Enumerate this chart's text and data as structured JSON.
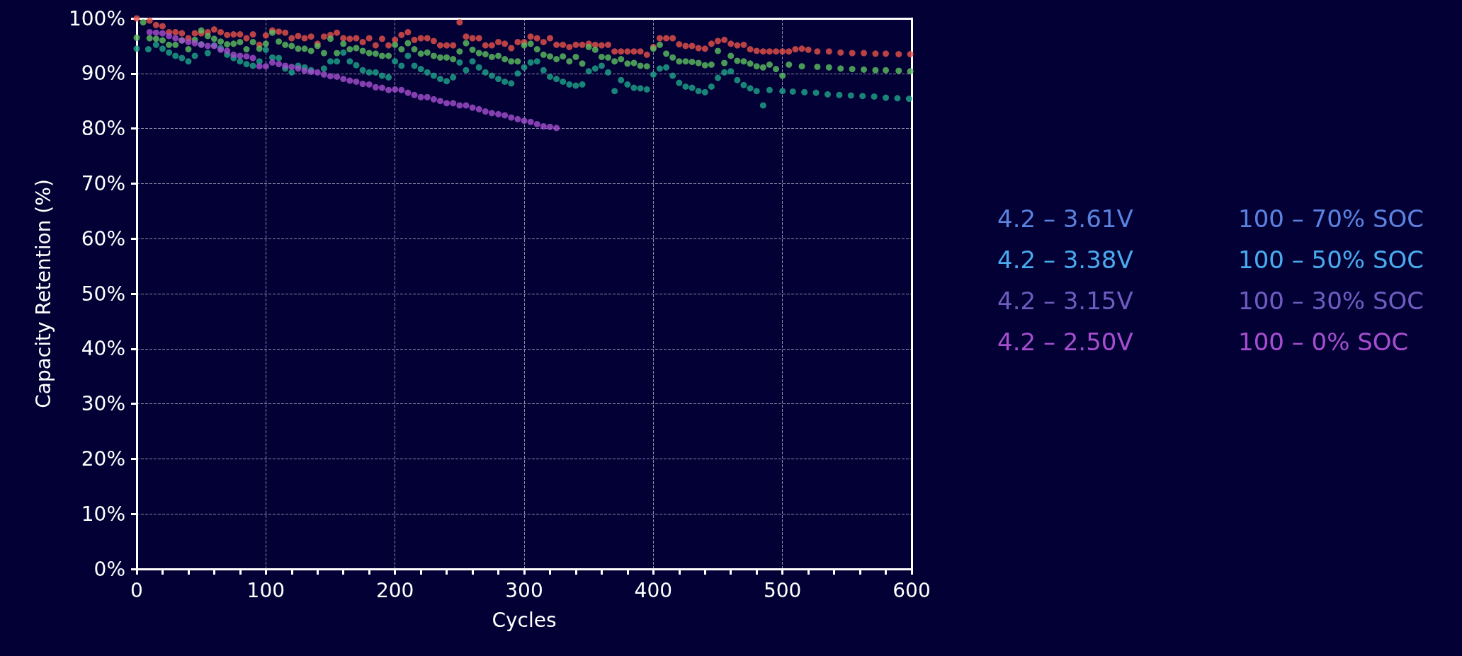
{
  "chart_data": {
    "type": "scatter",
    "xlabel": "Cycles",
    "ylabel": "Capacity Retention (%)",
    "xlim": [
      0,
      600
    ],
    "xticks": [
      0,
      100,
      200,
      300,
      400,
      500,
      600
    ],
    "ylim": [
      0,
      100
    ],
    "yticks": [
      {
        "value": 0,
        "label": "0%"
      },
      {
        "value": 10,
        "label": "10%"
      },
      {
        "value": 20,
        "label": "20%"
      },
      {
        "value": 30,
        "label": "30%"
      },
      {
        "value": 40,
        "label": "40%"
      },
      {
        "value": 50,
        "label": "50%"
      },
      {
        "value": 60,
        "label": "60%"
      },
      {
        "value": 70,
        "label": "70%"
      },
      {
        "value": 80,
        "label": "80%"
      },
      {
        "value": 90,
        "label": "90%"
      },
      {
        "value": 100,
        "label": "100%"
      }
    ],
    "grid": true,
    "marker": "circle",
    "annotations": [
      "4.2 – 3.61V",
      "4.2 – 3.38V",
      "4.2 – 3.15V",
      "4.2 – 2.50V",
      "100 – 70% SOC",
      "100 – 50% SOC",
      "100 – 30% SOC",
      "100 – 0% SOC"
    ],
    "series": [
      {
        "color": "#e8534a",
        "x": [
          0,
          10,
          15,
          20,
          25,
          30,
          35,
          40,
          45,
          50,
          55,
          60,
          65,
          70,
          75,
          80,
          85,
          90,
          95,
          100,
          105,
          110,
          115,
          120,
          125,
          130,
          135,
          140,
          145,
          150,
          155,
          160,
          165,
          170,
          175,
          180,
          185,
          190,
          195,
          200,
          205,
          210,
          215,
          220,
          225,
          230,
          235,
          240,
          245,
          250,
          255,
          260,
          265,
          270,
          275,
          280,
          285,
          290,
          295,
          300,
          305,
          310,
          315,
          320,
          325,
          330,
          335,
          340,
          345,
          350,
          355,
          360,
          365,
          370,
          375,
          380,
          385,
          390,
          395,
          400,
          405,
          410,
          415,
          420,
          425,
          430,
          435,
          440,
          445,
          450,
          455,
          460,
          465,
          470,
          475,
          480,
          485,
          490,
          495,
          500,
          505,
          510,
          515,
          520,
          527,
          536,
          545,
          554,
          563,
          572,
          580,
          590,
          599
        ],
        "values": [
          100,
          99.6,
          98.8,
          98.6,
          97.5,
          97.5,
          97.3,
          96.4,
          97.3,
          97.3,
          97.5,
          98.0,
          97.5,
          97.0,
          97.1,
          97.1,
          96.4,
          97.1,
          95.2,
          96.9,
          97.8,
          97.6,
          97.4,
          96.4,
          96.8,
          96.4,
          96.7,
          95.4,
          96.7,
          97.0,
          97.4,
          96.4,
          96.3,
          96.4,
          95.7,
          96.4,
          95.1,
          96.3,
          95.1,
          96.1,
          97.0,
          97.5,
          96.1,
          96.4,
          96.4,
          95.9,
          95.1,
          95.1,
          95.1,
          99.3,
          96.7,
          96.4,
          96.4,
          95.1,
          95.1,
          95.7,
          95.4,
          94.6,
          95.7,
          95.7,
          96.7,
          96.4,
          95.7,
          96.4,
          95.2,
          95.2,
          94.8,
          95.2,
          95.2,
          95.4,
          95.2,
          95.1,
          95.2,
          94.0,
          94.0,
          94.0,
          94.0,
          94.0,
          93.4,
          94.8,
          96.4,
          96.4,
          96.4,
          95.3,
          95.0,
          95.0,
          94.6,
          94.5,
          95.4,
          95.9,
          96.1,
          95.4,
          95.1,
          95.2,
          94.4,
          94.1,
          94.0,
          94.0,
          94.0,
          94.0,
          94.0,
          94.4,
          94.5,
          94.3,
          94.0,
          94.0,
          93.8,
          93.7,
          93.7,
          93.6,
          93.6,
          93.5,
          93.5
        ]
      },
      {
        "color": "#5cbf60",
        "x": [
          0,
          5,
          10,
          15,
          20,
          25,
          30,
          35,
          40,
          45,
          50,
          55,
          60,
          65,
          70,
          75,
          80,
          85,
          90,
          95,
          100,
          105,
          110,
          115,
          120,
          125,
          130,
          135,
          140,
          145,
          150,
          155,
          160,
          165,
          170,
          175,
          180,
          185,
          190,
          195,
          200,
          205,
          210,
          215,
          220,
          225,
          230,
          235,
          240,
          245,
          250,
          255,
          260,
          265,
          270,
          275,
          280,
          285,
          290,
          295,
          300,
          305,
          310,
          315,
          320,
          325,
          330,
          335,
          340,
          345,
          350,
          355,
          360,
          365,
          370,
          375,
          380,
          385,
          390,
          395,
          400,
          405,
          410,
          415,
          420,
          425,
          430,
          435,
          440,
          445,
          450,
          455,
          460,
          465,
          470,
          475,
          480,
          485,
          490,
          495,
          500,
          505,
          515,
          527,
          536,
          545,
          554,
          563,
          572,
          580,
          590,
          599
        ],
        "values": [
          96.5,
          99.3,
          96.4,
          96.3,
          96.0,
          95.2,
          95.2,
          96.0,
          94.4,
          96.1,
          97.8,
          96.8,
          96.3,
          95.8,
          95.3,
          95.4,
          95.7,
          94.4,
          95.7,
          94.5,
          95.4,
          97.4,
          95.8,
          95.2,
          95.0,
          94.5,
          94.5,
          94.1,
          95.0,
          93.7,
          96.3,
          93.7,
          95.4,
          94.4,
          94.6,
          94.1,
          93.7,
          93.6,
          93.2,
          93.2,
          95.2,
          94.4,
          95.5,
          94.4,
          93.6,
          93.8,
          93.2,
          92.9,
          92.9,
          92.6,
          94.0,
          95.5,
          94.3,
          93.7,
          93.5,
          93.0,
          93.2,
          92.6,
          92.2,
          92.2,
          95.1,
          95.4,
          94.4,
          93.4,
          93.1,
          92.6,
          93.1,
          92.2,
          93.0,
          91.8,
          94.8,
          94.3,
          93.0,
          92.9,
          92.2,
          92.6,
          91.8,
          91.9,
          91.4,
          91.3,
          94.5,
          95.2,
          93.6,
          92.9,
          92.2,
          92.2,
          92.1,
          91.9,
          91.5,
          91.6,
          94.1,
          91.9,
          93.2,
          92.3,
          92.2,
          91.8,
          91.3,
          91.1,
          91.6,
          90.8,
          89.6,
          91.6,
          91.3,
          91.2,
          91.1,
          90.9,
          90.8,
          90.7,
          90.6,
          90.6,
          90.5,
          90.4
        ]
      },
      {
        "color": "#1fa58a",
        "x": [
          0,
          9,
          15,
          20,
          25,
          30,
          35,
          40,
          45,
          50,
          55,
          60,
          65,
          70,
          75,
          80,
          85,
          90,
          95,
          100,
          105,
          110,
          115,
          120,
          125,
          130,
          135,
          140,
          145,
          150,
          155,
          160,
          165,
          170,
          175,
          180,
          185,
          190,
          195,
          200,
          205,
          210,
          215,
          220,
          225,
          230,
          235,
          240,
          245,
          250,
          255,
          260,
          265,
          270,
          275,
          280,
          285,
          290,
          295,
          300,
          305,
          310,
          315,
          320,
          325,
          330,
          335,
          340,
          345,
          350,
          355,
          360,
          365,
          370,
          375,
          380,
          385,
          390,
          395,
          400,
          405,
          410,
          415,
          420,
          425,
          430,
          435,
          440,
          445,
          450,
          455,
          460,
          465,
          470,
          475,
          480,
          485,
          490,
          500,
          508,
          517,
          526,
          535,
          544,
          553,
          562,
          571,
          580,
          589,
          598
        ],
        "values": [
          94.5,
          94.4,
          95.2,
          94.5,
          93.8,
          93.2,
          92.8,
          92.2,
          93.2,
          95.3,
          93.7,
          95.1,
          94.6,
          93.4,
          92.8,
          92.2,
          91.7,
          91.4,
          92.2,
          94.3,
          92.9,
          92.8,
          90.9,
          90.2,
          91.4,
          91.1,
          90.6,
          null,
          90.9,
          92.2,
          92.2,
          93.8,
          92.2,
          91.5,
          90.6,
          90.2,
          90.2,
          89.6,
          89.3,
          92.2,
          91.4,
          93.2,
          91.4,
          90.8,
          90.2,
          89.6,
          89.0,
          88.6,
          89.3,
          92.0,
          90.6,
          92.2,
          91.1,
          90.2,
          89.6,
          89.0,
          88.5,
          88.2,
          90.0,
          91.1,
          92.0,
          92.2,
          90.6,
          89.4,
          89.0,
          88.5,
          88.0,
          87.8,
          88.0,
          90.4,
          90.9,
          91.4,
          90.2,
          86.8,
          88.8,
          88.0,
          87.4,
          87.3,
          87.1,
          89.8,
          90.9,
          91.1,
          89.6,
          88.3,
          87.6,
          87.4,
          86.8,
          86.6,
          87.6,
          89.2,
          90.2,
          90.4,
          88.8,
          87.9,
          87.3,
          86.8,
          84.2,
          87.0,
          86.8,
          86.7,
          86.6,
          86.5,
          86.2,
          86.1,
          86.0,
          85.9,
          85.8,
          85.6,
          85.5,
          85.4
        ]
      },
      {
        "color": "#a64fcf",
        "x": [
          10,
          15,
          20,
          25,
          30,
          35,
          40,
          45,
          50,
          55,
          60,
          65,
          70,
          75,
          80,
          85,
          90,
          95,
          100,
          105,
          110,
          115,
          120,
          125,
          130,
          135,
          140,
          145,
          150,
          155,
          160,
          165,
          170,
          175,
          180,
          185,
          190,
          195,
          200,
          205,
          210,
          215,
          220,
          225,
          230,
          235,
          240,
          245,
          250,
          255,
          260,
          265,
          270,
          275,
          280,
          285,
          290,
          295,
          300,
          305,
          310,
          315,
          320,
          325
        ],
        "values": [
          97.5,
          97.4,
          97.3,
          96.8,
          96.4,
          96.0,
          95.7,
          95.5,
          95.2,
          95.0,
          95.0,
          94.3,
          94.1,
          93.4,
          93.2,
          93.1,
          92.8,
          91.3,
          91.3,
          92.0,
          91.7,
          91.4,
          91.2,
          90.9,
          90.5,
          90.3,
          90.2,
          89.8,
          89.5,
          89.4,
          89.0,
          88.7,
          88.5,
          88.1,
          88.0,
          87.5,
          87.4,
          87.0,
          87.1,
          87.0,
          86.5,
          86.1,
          85.7,
          85.7,
          85.3,
          85.0,
          84.6,
          84.6,
          84.2,
          84.2,
          83.8,
          83.5,
          83.1,
          82.8,
          82.6,
          82.4,
          82.0,
          81.7,
          81.4,
          81.2,
          80.8,
          80.4,
          80.3,
          80.1
        ]
      }
    ]
  }
}
